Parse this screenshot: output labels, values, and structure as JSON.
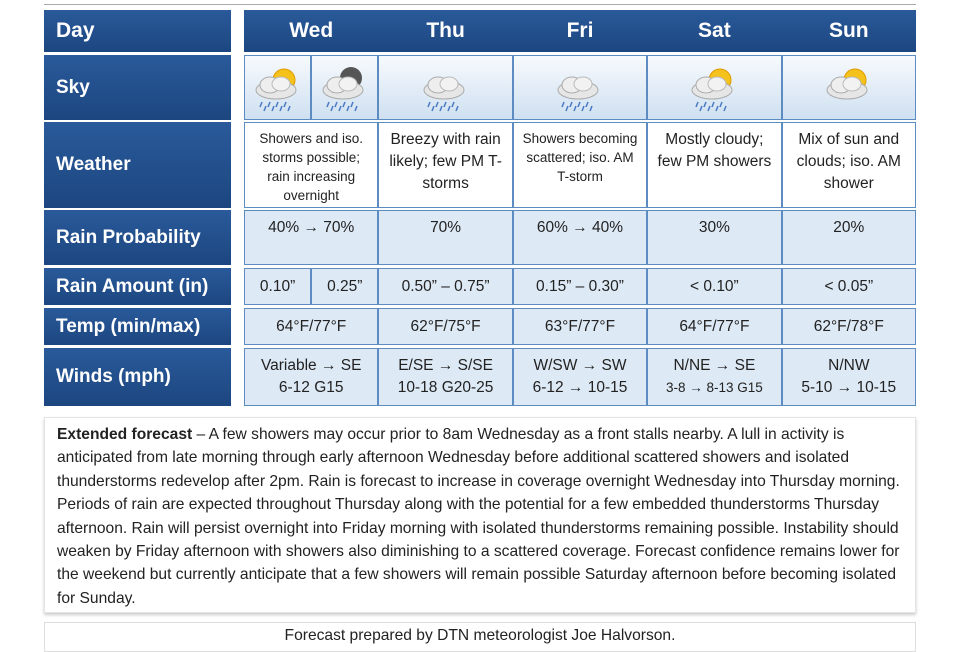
{
  "table": {
    "header": [
      "Day",
      "Wed",
      "Thu",
      "Fri",
      "Sat",
      "Sun"
    ],
    "rows": [
      {
        "label": "Sky"
      },
      {
        "label": "Weather",
        "cells": [
          "Showers and iso. storms possible; rain increasing overnight",
          "Breezy with rain likely; few PM T-storms",
          "Showers becoming scattered; iso. AM T-storm",
          "Mostly cloudy; few PM showers",
          "Mix of sun and clouds; iso. AM shower"
        ]
      },
      {
        "label": "Rain Probability",
        "cells": [
          "40% → 70%",
          "70%",
          "60% → 40%",
          "30%",
          "20%"
        ]
      },
      {
        "label": "Rain Amount (in)",
        "cells": [
          [
            "0.10”",
            "0.25”"
          ],
          "0.50” – 0.75”",
          "0.15” – 0.30”",
          "< 0.10”",
          "< 0.05”"
        ]
      },
      {
        "label": "Temp (min/max)",
        "cells": [
          "64°F/77°F",
          "62°F/75°F",
          "63°F/77°F",
          "64°F/77°F",
          "62°F/78°F"
        ]
      },
      {
        "label": "Winds (mph)",
        "cells": [
          [
            "Variable → SE",
            "6-12 G15"
          ],
          [
            "E/SE → S/SE",
            "10-18 G20-25"
          ],
          [
            "W/SW → SW",
            "6-12 → 10-15"
          ],
          [
            "N/NE → SE",
            "3-8 → 8-13 G15"
          ],
          [
            "N/NW",
            "5-10 → 10-15"
          ]
        ]
      }
    ]
  },
  "extended": {
    "heading": "Extended forecast",
    "text": " – A few showers may occur prior to 8am Wednesday as a front stalls nearby. A lull in activity is anticipated from late morning through early afternoon Wednesday before additional scattered showers and isolated thunderstorms redevelop after 2pm. Rain is forecast to increase in coverage overnight Wednesday into Thursday morning. Periods of rain are expected throughout Thursday along with the potential for a few embedded thunderstorms Thursday afternoon. Rain will persist overnight into Friday morning with isolated thunderstorms remaining possible. Instability should weaken by Friday afternoon with showers also diminishing to a scattered coverage. Forecast confidence remains lower for the weekend but currently anticipate that a few showers will remain possible Saturday afternoon before becoming isolated for Sunday."
  },
  "footer": "Forecast prepared by DTN meteorologist Joe Halvorson."
}
